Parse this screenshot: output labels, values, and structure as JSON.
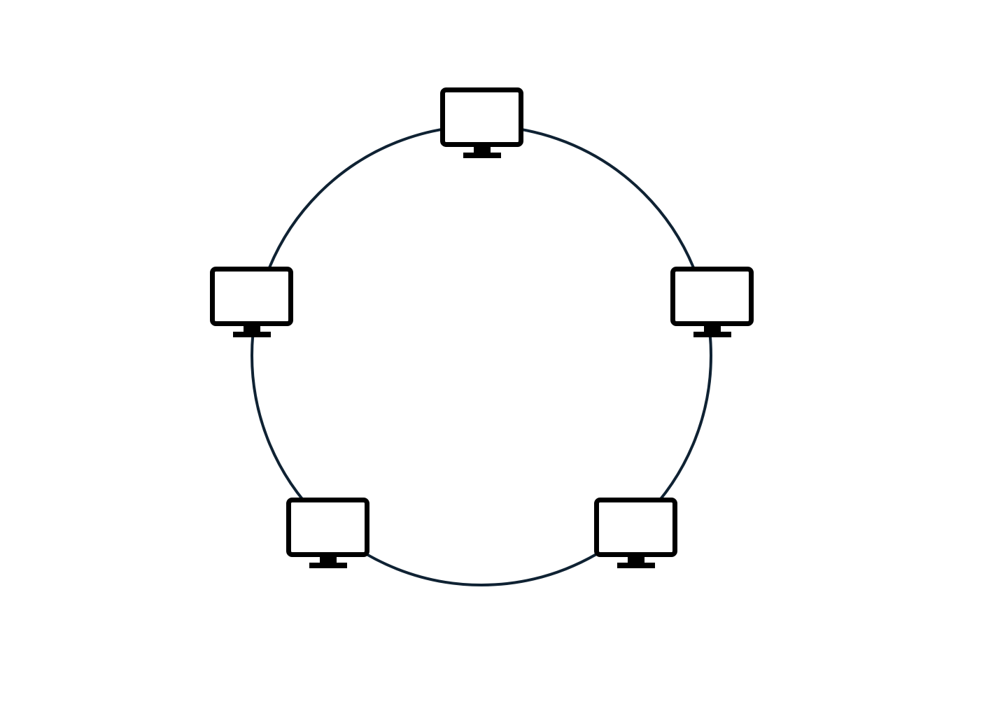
{
  "diagram": {
    "type": "ring-network-topology",
    "ring_color": "#0f2233",
    "icon_color": "#000000",
    "background": "#ffffff",
    "nodes": [
      {
        "icon": "monitor-icon",
        "position": "top"
      },
      {
        "icon": "monitor-icon",
        "position": "right"
      },
      {
        "icon": "monitor-icon",
        "position": "bottom-right"
      },
      {
        "icon": "monitor-icon",
        "position": "bottom-left"
      },
      {
        "icon": "monitor-icon",
        "position": "left"
      }
    ]
  }
}
